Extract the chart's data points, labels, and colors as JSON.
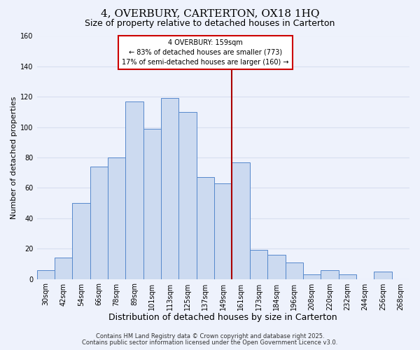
{
  "title": "4, OVERBURY, CARTERTON, OX18 1HQ",
  "subtitle": "Size of property relative to detached houses in Carterton",
  "xlabel": "Distribution of detached houses by size in Carterton",
  "ylabel": "Number of detached properties",
  "categories": [
    "30sqm",
    "42sqm",
    "54sqm",
    "66sqm",
    "78sqm",
    "89sqm",
    "101sqm",
    "113sqm",
    "125sqm",
    "137sqm",
    "149sqm",
    "161sqm",
    "173sqm",
    "184sqm",
    "196sqm",
    "208sqm",
    "220sqm",
    "232sqm",
    "244sqm",
    "256sqm",
    "268sqm"
  ],
  "values": [
    6,
    14,
    50,
    74,
    80,
    117,
    99,
    119,
    110,
    67,
    63,
    77,
    19,
    16,
    11,
    3,
    6,
    3,
    0,
    5,
    0
  ],
  "bar_color": "#ccdaf0",
  "bar_edge_color": "#5588cc",
  "background_color": "#eef2fc",
  "grid_color": "#d8dff0",
  "ylim": [
    0,
    160
  ],
  "yticks": [
    0,
    20,
    40,
    60,
    80,
    100,
    120,
    140,
    160
  ],
  "vline_x_index": 11,
  "vline_color": "#aa0000",
  "annotation_title": "4 OVERBURY: 159sqm",
  "annotation_line1": "← 83% of detached houses are smaller (773)",
  "annotation_line2": "17% of semi-detached houses are larger (160) →",
  "annotation_box_color": "#ffffff",
  "annotation_box_edge": "#cc0000",
  "footer1": "Contains HM Land Registry data © Crown copyright and database right 2025.",
  "footer2": "Contains public sector information licensed under the Open Government Licence v3.0.",
  "title_fontsize": 11,
  "subtitle_fontsize": 9,
  "xlabel_fontsize": 9,
  "ylabel_fontsize": 8,
  "tick_fontsize": 7,
  "annotation_fontsize": 7,
  "footer_fontsize": 6
}
